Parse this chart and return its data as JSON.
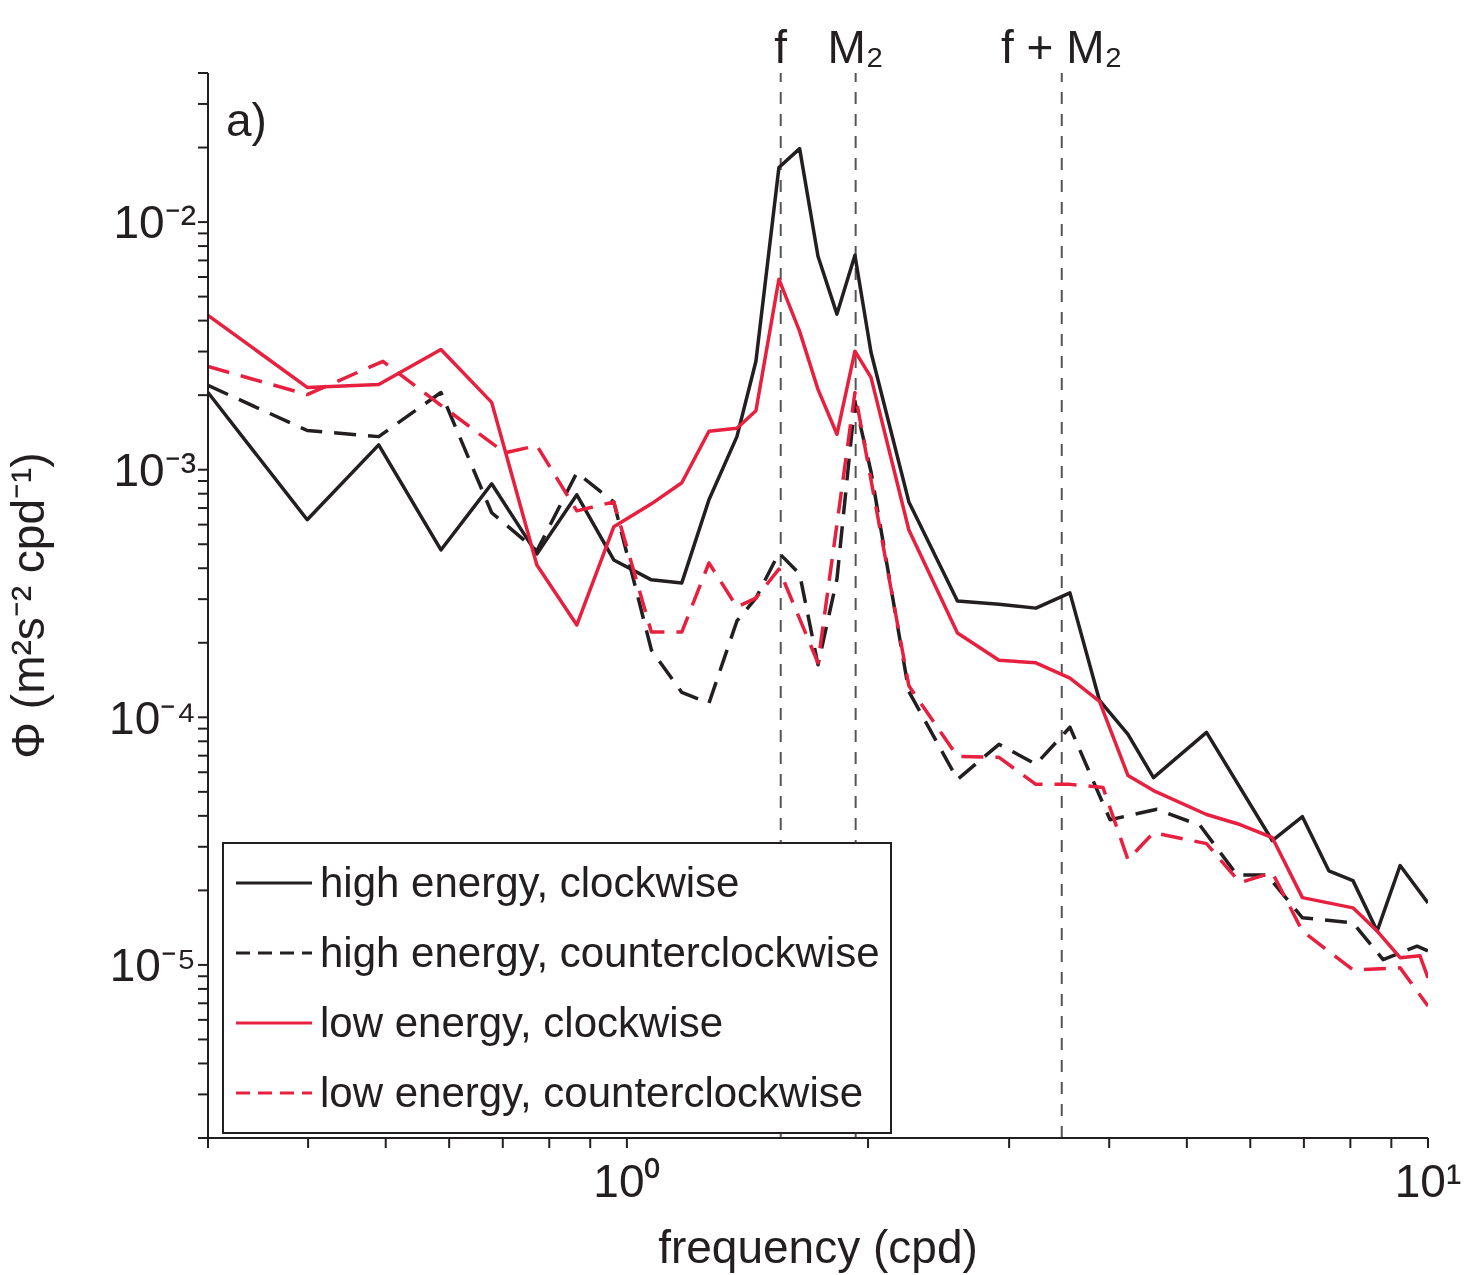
{
  "chart_data": {
    "type": "line",
    "xlabel": "frequency (cpd)",
    "ylabel": "Φ (m²s⁻² cpd⁻¹)",
    "log": "xy",
    "legend": "bottom left",
    "annotations": [
      "a)"
    ],
    "xlim": [
      0.3,
      10
    ],
    "ylim": [
      2e-06,
      0.04
    ],
    "xticks": [
      {
        "value": 0.3,
        "label": null
      },
      {
        "value": 0.4,
        "label": null
      },
      {
        "value": 0.5,
        "label": null
      },
      {
        "value": 0.6,
        "label": null
      },
      {
        "value": 0.7,
        "label": null
      },
      {
        "value": 0.8,
        "label": null
      },
      {
        "value": 0.9,
        "label": null
      },
      {
        "value": 1,
        "label": "10⁰"
      },
      {
        "value": 2,
        "label": null
      },
      {
        "value": 3,
        "label": null
      },
      {
        "value": 4,
        "label": null
      },
      {
        "value": 5,
        "label": null
      },
      {
        "value": 6,
        "label": null
      },
      {
        "value": 7,
        "label": null
      },
      {
        "value": 8,
        "label": null
      },
      {
        "value": 9,
        "label": null
      },
      {
        "value": 10,
        "label": "10¹"
      }
    ],
    "yticks": [
      {
        "value": 2e-06,
        "label": null
      },
      {
        "value": 3e-06,
        "label": null
      },
      {
        "value": 4e-06,
        "label": null
      },
      {
        "value": 5e-06,
        "label": null
      },
      {
        "value": 6e-06,
        "label": null
      },
      {
        "value": 7e-06,
        "label": null
      },
      {
        "value": 8e-06,
        "label": null
      },
      {
        "value": 9e-06,
        "label": null
      },
      {
        "value": 1e-05,
        "label": "10⁻⁵"
      },
      {
        "value": 2e-05,
        "label": null
      },
      {
        "value": 3e-05,
        "label": null
      },
      {
        "value": 4e-05,
        "label": null
      },
      {
        "value": 5e-05,
        "label": null
      },
      {
        "value": 6e-05,
        "label": null
      },
      {
        "value": 7e-05,
        "label": null
      },
      {
        "value": 8e-05,
        "label": null
      },
      {
        "value": 9e-05,
        "label": null
      },
      {
        "value": 0.0001,
        "label": "10⁻⁴"
      },
      {
        "value": 0.0002,
        "label": null
      },
      {
        "value": 0.0003,
        "label": null
      },
      {
        "value": 0.0004,
        "label": null
      },
      {
        "value": 0.0005,
        "label": null
      },
      {
        "value": 0.0006,
        "label": null
      },
      {
        "value": 0.0007,
        "label": null
      },
      {
        "value": 0.0008,
        "label": null
      },
      {
        "value": 0.0009,
        "label": null
      },
      {
        "value": 0.001,
        "label": "10⁻³"
      },
      {
        "value": 0.002,
        "label": null
      },
      {
        "value": 0.003,
        "label": null
      },
      {
        "value": 0.004,
        "label": null
      },
      {
        "value": 0.005,
        "label": null
      },
      {
        "value": 0.006,
        "label": null
      },
      {
        "value": 0.007,
        "label": null
      },
      {
        "value": 0.008,
        "label": null
      },
      {
        "value": 0.009,
        "label": null
      },
      {
        "value": 0.01,
        "label": "10⁻²"
      },
      {
        "value": 0.02,
        "label": null
      },
      {
        "value": 0.03,
        "label": null
      },
      {
        "value": 0.04,
        "label": null
      }
    ],
    "ref_lines": [
      {
        "axis": "x",
        "value": 1.556,
        "label": "f",
        "color": "#555555",
        "line_style": "dashed"
      },
      {
        "axis": "x",
        "value": 1.93,
        "label": "M₂",
        "color": "#555555",
        "line_style": "dashed"
      },
      {
        "axis": "x",
        "value": 3.49,
        "label": "f + M₂",
        "color": "#555555",
        "line_style": "dashed"
      }
    ],
    "series": [
      {
        "name": "high energy, clockwise",
        "color": "#231f20",
        "line_style": "solid",
        "x": [
          0.3,
          0.399,
          0.49,
          0.586,
          0.678,
          0.772,
          0.866,
          0.963,
          1.073,
          1.171,
          1.266,
          1.372,
          1.449,
          1.548,
          1.643,
          1.732,
          1.829,
          1.926,
          2.017,
          2.249,
          2.586,
          2.914,
          3.24,
          3.573,
          3.89,
          4.222,
          4.543,
          5.291,
          6.391,
          6.97,
          7.52,
          8.06,
          8.64,
          9.23,
          10
        ],
        "values": [
          0.00205,
          0.000628,
          0.00126,
          0.000474,
          0.000877,
          0.000457,
          0.000792,
          0.000432,
          0.000359,
          0.000349,
          0.000756,
          0.00136,
          0.00274,
          0.0166,
          0.0198,
          0.00728,
          0.00425,
          0.00735,
          0.00298,
          0.000741,
          0.000295,
          0.000286,
          0.000276,
          0.000318,
          0.000117,
          8.53e-05,
          5.71e-05,
          8.69e-05,
          3.18e-05,
          3.97e-05,
          2.4e-05,
          2.19e-05,
          1.37e-05,
          2.52e-05,
          1.78e-05
        ]
      },
      {
        "name": "high energy, counterclockwise",
        "color": "#231f20",
        "line_style": "dashed",
        "x": [
          0.3,
          0.399,
          0.49,
          0.586,
          0.678,
          0.772,
          0.866,
          0.963,
          1.073,
          1.171,
          1.266,
          1.372,
          1.449,
          1.548,
          1.643,
          1.732,
          1.829,
          1.926,
          2.017,
          2.249,
          2.586,
          2.914,
          3.24,
          3.573,
          4.009,
          4.589,
          5.193,
          5.774,
          6.295,
          6.97,
          8.06,
          8.79,
          9.69,
          10
        ],
        "values": [
          0.00219,
          0.00144,
          0.00136,
          0.00205,
          0.00067,
          0.00047,
          0.000972,
          0.000741,
          0.000187,
          0.000126,
          0.000114,
          0.000245,
          0.000303,
          0.000461,
          0.000379,
          0.000163,
          0.000362,
          0.00188,
          0.000982,
          0.000127,
          5.61e-05,
          7.78e-05,
          6.46e-05,
          9.12e-05,
          3.86e-05,
          4.25e-05,
          3.66e-05,
          2.31e-05,
          2.31e-05,
          1.55e-05,
          1.48e-05,
          1.05e-05,
          1.19e-05,
          1.14e-05
        ]
      },
      {
        "name": "low energy, clockwise",
        "color": "#e8203f",
        "line_style": "solid",
        "x": [
          0.3,
          0.399,
          0.49,
          0.586,
          0.678,
          0.772,
          0.866,
          0.963,
          1.073,
          1.171,
          1.266,
          1.372,
          1.449,
          1.548,
          1.643,
          1.732,
          1.829,
          1.926,
          2.017,
          2.249,
          2.586,
          2.914,
          3.24,
          3.573,
          3.89,
          4.222,
          4.543,
          5.291,
          5.825,
          6.391,
          6.97,
          8.06,
          8.64,
          9.23,
          9.77,
          10
        ],
        "values": [
          0.0042,
          0.00215,
          0.00221,
          0.00306,
          0.00187,
          0.000412,
          0.000236,
          0.000588,
          0.000728,
          0.000886,
          0.00143,
          0.00147,
          0.00173,
          0.00588,
          0.00362,
          0.00211,
          0.00139,
          0.00301,
          0.00236,
          0.000571,
          0.000219,
          0.00017,
          0.000166,
          0.000144,
          0.000116,
          5.82e-05,
          5.06e-05,
          4.05e-05,
          3.69e-05,
          3.27e-05,
          1.87e-05,
          1.7e-05,
          1.37e-05,
          1.07e-05,
          1.09e-05,
          8.86e-06
        ]
      },
      {
        "name": "low energy, counterclockwise",
        "color": "#e8203f",
        "line_style": "dashed",
        "x": [
          0.3,
          0.399,
          0.496,
          0.586,
          0.704,
          0.772,
          0.866,
          0.963,
          1.073,
          1.171,
          1.266,
          1.372,
          1.449,
          1.548,
          1.732,
          1.926,
          2.249,
          2.586,
          2.914,
          3.24,
          3.573,
          3.929,
          4.222,
          4.543,
          5.291,
          5.825,
          6.391,
          6.97,
          8.06,
          9.23,
          10
        ],
        "values": [
          0.00261,
          0.00201,
          0.00274,
          0.00182,
          0.00117,
          0.00125,
          0.000682,
          0.000741,
          0.000221,
          0.000221,
          0.00042,
          0.000279,
          0.000303,
          0.000397,
          0.000166,
          0.00205,
          0.000134,
          6.95e-05,
          6.89e-05,
          5.36e-05,
          5.36e-05,
          5.21e-05,
          2.66e-05,
          3.42e-05,
          3.09e-05,
          2.15e-05,
          2.36e-05,
          1.37e-05,
          9.55e-06,
          9.73e-06,
          6.82e-06
        ]
      }
    ]
  }
}
